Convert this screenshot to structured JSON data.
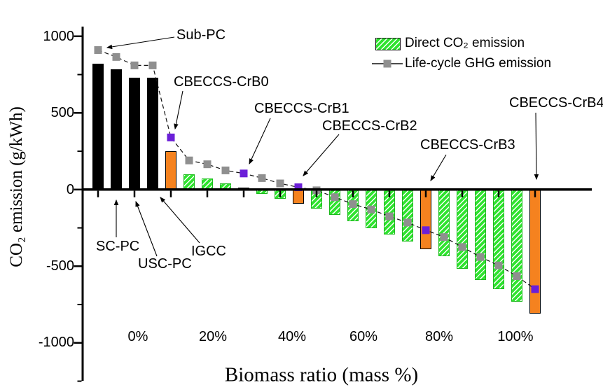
{
  "chart_data": {
    "type": "bar",
    "title": "",
    "xlabel": "Biomass ratio (mass %)",
    "ylabel": "CO₂ emission (g/kWh)",
    "ylim": [
      -1250,
      1100
    ],
    "ytick_values": [
      1000,
      500,
      0,
      -500,
      -1000
    ],
    "ytick_labels": [
      "1000",
      "500",
      "0",
      "-500",
      "-1000"
    ],
    "ytick_minor_values": [
      750,
      250,
      -250,
      -750,
      -1250
    ],
    "xtick_labels": [
      "0%",
      "20%",
      "40%",
      "60%",
      "80%",
      "100%"
    ],
    "grid": false,
    "legend_position": "top-right",
    "legend": [
      {
        "label": "Direct CO₂ emission",
        "swatch": "green-hatched-bar"
      },
      {
        "label": "Life-cycle GHG emission",
        "swatch": "gray-square-on-line"
      }
    ],
    "series_names": [
      "Direct CO₂ emission",
      "Life-cycle GHG emission"
    ],
    "points": [
      {
        "label": "Sub-PC",
        "group": "coal",
        "x_pct": 0,
        "direct": 820,
        "lifecycle": 910
      },
      {
        "label": "SC-PC",
        "group": "coal",
        "x_pct": 0,
        "direct": 785,
        "lifecycle": 865
      },
      {
        "label": "USC-PC",
        "group": "coal",
        "x_pct": 0,
        "direct": 730,
        "lifecycle": 810
      },
      {
        "label": "IGCC",
        "group": "coal",
        "x_pct": 0,
        "direct": 730,
        "lifecycle": 810
      },
      {
        "label": "CBECCS-CrB0",
        "group": "cbeccs-highlight",
        "x_pct": 9,
        "direct": 250,
        "lifecycle": 340
      },
      {
        "group": "biomass",
        "x_pct": 14,
        "direct": 100,
        "lifecycle": 190
      },
      {
        "group": "biomass",
        "x_pct": 18,
        "direct": 70,
        "lifecycle": 165
      },
      {
        "group": "biomass",
        "x_pct": 23,
        "direct": 40,
        "lifecycle": 125
      },
      {
        "label": "CBECCS-CrB1",
        "group": "cbeccs-highlight",
        "x_pct": 28,
        "direct": 13,
        "lifecycle": 105
      },
      {
        "group": "biomass",
        "x_pct": 33,
        "direct": -30,
        "lifecycle": 75
      },
      {
        "group": "biomass",
        "x_pct": 37,
        "direct": -60,
        "lifecycle": 40
      },
      {
        "label": "CBECCS-CrB2",
        "group": "cbeccs-highlight",
        "x_pct": 43,
        "direct": -90,
        "lifecycle": 15
      },
      {
        "group": "biomass",
        "x_pct": 48,
        "direct": -125,
        "lifecycle": -5
      },
      {
        "group": "biomass",
        "x_pct": 52,
        "direct": -165,
        "lifecycle": -50
      },
      {
        "group": "biomass",
        "x_pct": 57,
        "direct": -205,
        "lifecycle": -95
      },
      {
        "group": "biomass",
        "x_pct": 62,
        "direct": -250,
        "lifecycle": -130
      },
      {
        "group": "biomass",
        "x_pct": 67,
        "direct": -295,
        "lifecycle": -175
      },
      {
        "group": "biomass",
        "x_pct": 71,
        "direct": -340,
        "lifecycle": -215
      },
      {
        "label": "CBECCS-CrB3",
        "group": "cbeccs-highlight",
        "x_pct": 76,
        "direct": -390,
        "lifecycle": -265
      },
      {
        "group": "biomass",
        "x_pct": 81,
        "direct": -435,
        "lifecycle": -310
      },
      {
        "group": "biomass",
        "x_pct": 86,
        "direct": -515,
        "lifecycle": -375
      },
      {
        "group": "biomass",
        "x_pct": 91,
        "direct": -590,
        "lifecycle": -440
      },
      {
        "group": "biomass",
        "x_pct": 96,
        "direct": -650,
        "lifecycle": -495
      },
      {
        "group": "biomass",
        "x_pct": 100,
        "direct": -730,
        "lifecycle": -565
      },
      {
        "label": "CBECCS-CrB4",
        "group": "cbeccs-highlight",
        "x_pct": 106,
        "direct": -810,
        "lifecycle": -650
      }
    ],
    "annotations": [
      {
        "text": "Sub-PC",
        "points_to": "lifecycle marker of Sub-PC"
      },
      {
        "text": "CBECCS-CrB0",
        "points_to": "purple marker above CrB0 bar"
      },
      {
        "text": "CBECCS-CrB1",
        "points_to": "purple marker above CrB1 bar"
      },
      {
        "text": "CBECCS-CrB2",
        "points_to": "purple marker above CrB2 bar"
      },
      {
        "text": "CBECCS-CrB3",
        "points_to": "top of CrB3 bar"
      },
      {
        "text": "CBECCS-CrB4",
        "points_to": "top of CrB4 bar"
      },
      {
        "text": "SC-PC",
        "points_to": "second black bar"
      },
      {
        "text": "USC-PC",
        "points_to": "third black bar"
      },
      {
        "text": "IGCC",
        "points_to": "fourth black bar"
      }
    ],
    "colors": {
      "coal_bar": "#000000",
      "biomass_bar": "#2fe32f",
      "hatch": "#ffffff",
      "highlight_bar": "#f5821f",
      "line": "#111111",
      "line_marker": "#8f8f8f",
      "highlight_marker": "#6b1fd8"
    }
  }
}
